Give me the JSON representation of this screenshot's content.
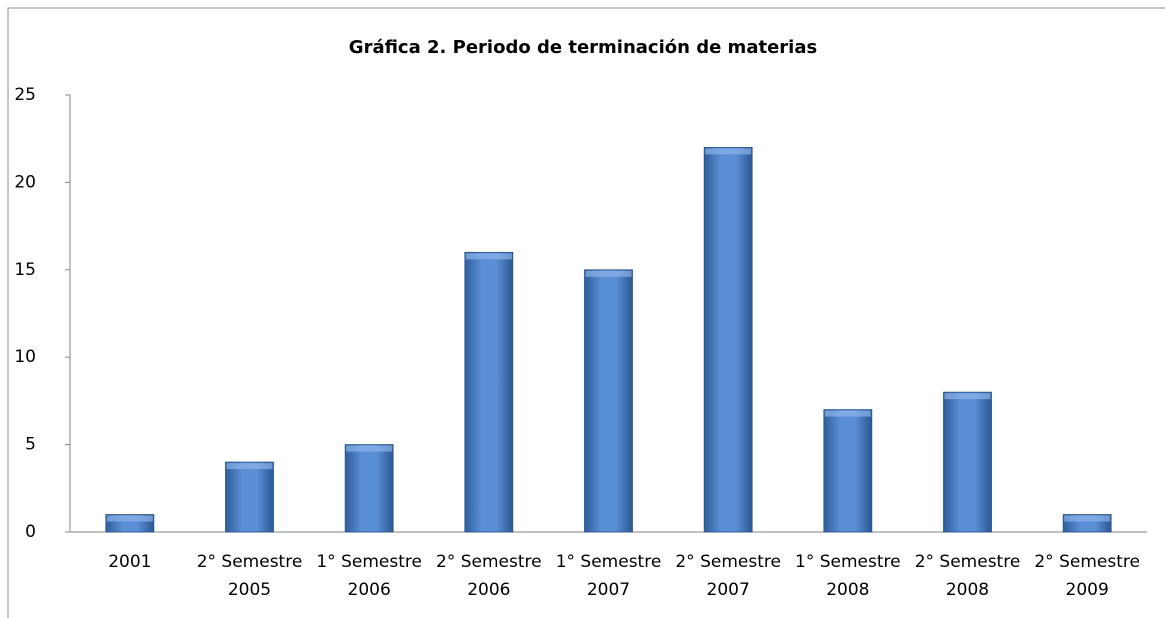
{
  "chart_data": {
    "type": "bar",
    "title": "Gráfica 2. Periodo de terminación de materias",
    "categories": [
      [
        "2001"
      ],
      [
        "2° Semestre",
        "2005"
      ],
      [
        "1° Semestre",
        "2006"
      ],
      [
        "2° Semestre",
        "2006"
      ],
      [
        "1° Semestre",
        "2007"
      ],
      [
        "2° Semestre",
        "2007"
      ],
      [
        "1° Semestre",
        "2008"
      ],
      [
        "2° Semestre",
        "2008"
      ],
      [
        "2° Semestre",
        "2009"
      ]
    ],
    "values": [
      1,
      4,
      5,
      16,
      15,
      22,
      7,
      8,
      1
    ],
    "color": "#4f81bd",
    "ylim": [
      0,
      25
    ],
    "yticks": [
      0,
      5,
      10,
      15,
      20,
      25
    ],
    "grid": false
  }
}
